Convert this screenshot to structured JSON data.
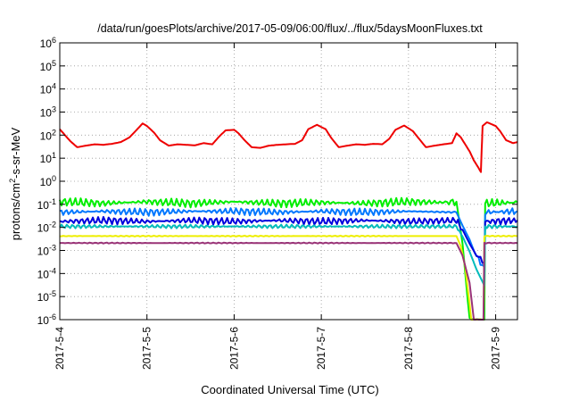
{
  "chart_data": {
    "type": "line",
    "title": "/data/run/goesPlots/archive/2017-05-09/06:00/flux/../flux/5daysMoonFluxes.txt",
    "xlabel": "Coordinated Universal Time (UTC)",
    "ylabel": {
      "prefix": "protons/cm",
      "sup": "2",
      "suffix": "-s-sr-MeV"
    },
    "yscale": "log",
    "ylim_exponent": [
      -6,
      6
    ],
    "y_tick_exponents": [
      -6,
      -5,
      -4,
      -3,
      -2,
      -1,
      0,
      1,
      2,
      3,
      4,
      5,
      6
    ],
    "y_tick_base": "10",
    "xlim_days": [
      0,
      5.25
    ],
    "x_ticks": [
      {
        "day": 0,
        "label": "2017-5-4"
      },
      {
        "day": 1,
        "label": "2017-5-5"
      },
      {
        "day": 2,
        "label": "2017-5-6"
      },
      {
        "day": 3,
        "label": "2017-5-7"
      },
      {
        "day": 4,
        "label": "2017-5-8"
      },
      {
        "day": 5,
        "label": "2017-5-9"
      }
    ],
    "grid": true,
    "legend": "none",
    "series": [
      {
        "color": "#ee0000",
        "points": [
          [
            0,
            180
          ],
          [
            0.05,
            110
          ],
          [
            0.12,
            55
          ],
          [
            0.2,
            30
          ],
          [
            0.3,
            35
          ],
          [
            0.4,
            40
          ],
          [
            0.5,
            38
          ],
          [
            0.6,
            42
          ],
          [
            0.7,
            50
          ],
          [
            0.8,
            80
          ],
          [
            0.9,
            200
          ],
          [
            0.95,
            320
          ],
          [
            1.0,
            250
          ],
          [
            1.08,
            130
          ],
          [
            1.15,
            60
          ],
          [
            1.25,
            35
          ],
          [
            1.35,
            40
          ],
          [
            1.45,
            38
          ],
          [
            1.55,
            36
          ],
          [
            1.65,
            45
          ],
          [
            1.75,
            40
          ],
          [
            1.82,
            80
          ],
          [
            1.9,
            160
          ],
          [
            2.0,
            170
          ],
          [
            2.05,
            120
          ],
          [
            2.12,
            60
          ],
          [
            2.2,
            30
          ],
          [
            2.3,
            28
          ],
          [
            2.4,
            35
          ],
          [
            2.5,
            38
          ],
          [
            2.6,
            40
          ],
          [
            2.7,
            42
          ],
          [
            2.78,
            60
          ],
          [
            2.85,
            180
          ],
          [
            2.95,
            280
          ],
          [
            3.05,
            180
          ],
          [
            3.12,
            70
          ],
          [
            3.2,
            30
          ],
          [
            3.3,
            35
          ],
          [
            3.4,
            40
          ],
          [
            3.5,
            38
          ],
          [
            3.6,
            42
          ],
          [
            3.7,
            40
          ],
          [
            3.78,
            70
          ],
          [
            3.85,
            170
          ],
          [
            3.95,
            260
          ],
          [
            4.05,
            150
          ],
          [
            4.12,
            70
          ],
          [
            4.2,
            30
          ],
          [
            4.3,
            35
          ],
          [
            4.4,
            40
          ],
          [
            4.5,
            45
          ],
          [
            4.55,
            120
          ],
          [
            4.6,
            80
          ],
          [
            4.65,
            40
          ],
          [
            4.7,
            20
          ],
          [
            4.75,
            8
          ],
          [
            4.8,
            4
          ],
          [
            4.83,
            2.5
          ],
          [
            4.85,
            250
          ],
          [
            4.9,
            360
          ],
          [
            5.0,
            250
          ],
          [
            5.05,
            150
          ],
          [
            5.12,
            60
          ],
          [
            5.2,
            45
          ],
          [
            5.25,
            50
          ]
        ]
      },
      {
        "color": "#00ee00",
        "points": [
          [
            0,
            0.13
          ],
          [
            0.5,
            0.11
          ],
          [
            1.0,
            0.13
          ],
          [
            1.5,
            0.11
          ],
          [
            2.0,
            0.13
          ],
          [
            2.5,
            0.11
          ],
          [
            3.0,
            0.12
          ],
          [
            3.5,
            0.11
          ],
          [
            4.0,
            0.13
          ],
          [
            4.4,
            0.12
          ],
          [
            4.55,
            0.13
          ],
          [
            4.62,
            0.002
          ],
          [
            4.7,
            1e-06
          ],
          [
            4.87,
            1e-06
          ],
          [
            4.88,
            0.11
          ],
          [
            5.25,
            0.12
          ]
        ]
      },
      {
        "color": "#0077ff",
        "points": [
          [
            0,
            0.045
          ],
          [
            0.5,
            0.05
          ],
          [
            1.0,
            0.045
          ],
          [
            1.5,
            0.05
          ],
          [
            2.0,
            0.05
          ],
          [
            2.5,
            0.045
          ],
          [
            3.0,
            0.05
          ],
          [
            3.5,
            0.045
          ],
          [
            4.0,
            0.05
          ],
          [
            4.55,
            0.045
          ],
          [
            4.62,
            0.012
          ],
          [
            4.7,
            0.003
          ],
          [
            4.78,
            0.0005
          ],
          [
            4.87,
            0.0002
          ],
          [
            4.88,
            0.045
          ],
          [
            5.25,
            0.05
          ]
        ]
      },
      {
        "color": "#0000dd",
        "points": [
          [
            0,
            0.018
          ],
          [
            0.5,
            0.02
          ],
          [
            1.0,
            0.018
          ],
          [
            1.5,
            0.02
          ],
          [
            2.0,
            0.018
          ],
          [
            2.5,
            0.02
          ],
          [
            3.0,
            0.018
          ],
          [
            3.5,
            0.02
          ],
          [
            4.0,
            0.018
          ],
          [
            4.55,
            0.02
          ],
          [
            4.62,
            0.008
          ],
          [
            4.7,
            0.002
          ],
          [
            4.78,
            0.0006
          ],
          [
            4.87,
            0.0003
          ],
          [
            4.88,
            0.018
          ],
          [
            5.25,
            0.02
          ]
        ]
      },
      {
        "color": "#00bbbb",
        "points": [
          [
            0,
            0.011
          ],
          [
            0.5,
            0.011
          ],
          [
            1.0,
            0.011
          ],
          [
            1.5,
            0.011
          ],
          [
            2.0,
            0.011
          ],
          [
            2.5,
            0.011
          ],
          [
            3.0,
            0.011
          ],
          [
            3.5,
            0.011
          ],
          [
            4.0,
            0.011
          ],
          [
            4.55,
            0.011
          ],
          [
            4.62,
            0.004
          ],
          [
            4.7,
            0.0009
          ],
          [
            4.78,
            0.00015
          ],
          [
            4.87,
            3e-05
          ],
          [
            4.88,
            0.011
          ],
          [
            5.25,
            0.011
          ]
        ]
      },
      {
        "color": "#eeee00",
        "points": [
          [
            0,
            0.0042
          ],
          [
            0.5,
            0.0042
          ],
          [
            1.0,
            0.0042
          ],
          [
            1.5,
            0.0042
          ],
          [
            2.0,
            0.0042
          ],
          [
            2.5,
            0.0042
          ],
          [
            3.0,
            0.0042
          ],
          [
            3.5,
            0.0042
          ],
          [
            4.0,
            0.0042
          ],
          [
            4.55,
            0.0042
          ],
          [
            4.6,
            0.0015
          ],
          [
            4.65,
            0.0002
          ],
          [
            4.7,
            5e-06
          ],
          [
            4.72,
            1e-06
          ],
          [
            4.86,
            1e-06
          ],
          [
            4.87,
            0.0042
          ],
          [
            5.25,
            0.0042
          ]
        ]
      },
      {
        "color": "#993377",
        "points": [
          [
            0,
            0.0021
          ],
          [
            0.5,
            0.0021
          ],
          [
            1.0,
            0.0021
          ],
          [
            1.5,
            0.0021
          ],
          [
            2.0,
            0.0021
          ],
          [
            2.5,
            0.0021
          ],
          [
            3.0,
            0.0021
          ],
          [
            3.5,
            0.0021
          ],
          [
            4.0,
            0.0021
          ],
          [
            4.55,
            0.0021
          ],
          [
            4.62,
            0.0006
          ],
          [
            4.7,
            4e-05
          ],
          [
            4.75,
            1e-06
          ],
          [
            4.86,
            1e-06
          ],
          [
            4.87,
            0.0021
          ],
          [
            5.25,
            0.0021
          ]
        ]
      }
    ]
  }
}
